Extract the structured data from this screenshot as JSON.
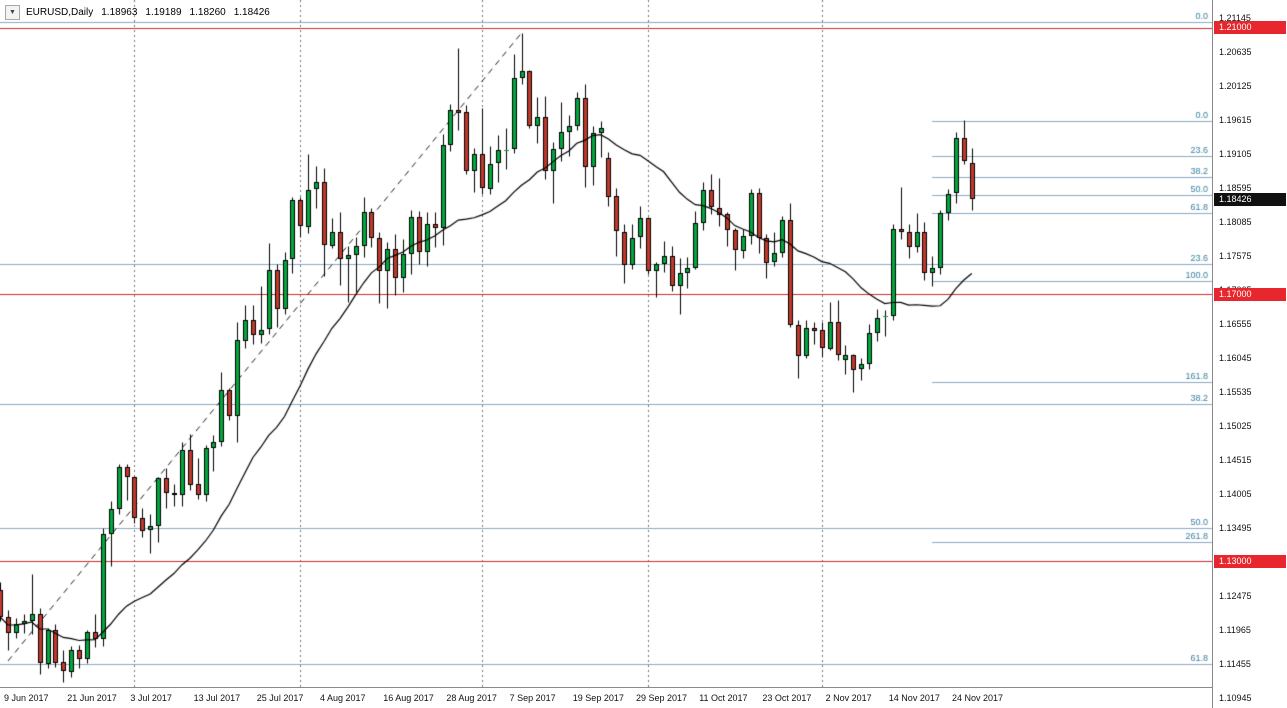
{
  "header": {
    "dropdown_icon": "▼",
    "symbol": "EURUSD,Daily",
    "open": "1.18963",
    "high": "1.19189",
    "low": "1.18260",
    "close": "1.18426"
  },
  "style": {
    "bg": "#ffffff",
    "up_candle": "#00a83e",
    "down_candle": "#c0392b",
    "candle_outline": "#000000",
    "wick": "#000000",
    "ma_line": "#000000",
    "trendline": "#222222",
    "separator": "#777777",
    "fib_line": "#86abc3",
    "fib_label": "#3b7f9f",
    "hline": "#d42a2a",
    "tag_red_bg": "#e8262d",
    "tag_black_bg": "#111111",
    "tag_text": "#ffffff",
    "axis_text": "#111111"
  },
  "chart_data": {
    "type": "candlestick",
    "symbol": "EURUSD",
    "timeframe": "Daily",
    "title": "EURUSD,Daily",
    "last_bar": {
      "open": 1.18963,
      "high": 1.19189,
      "low": 1.1826,
      "close": 1.18426
    },
    "price_axis": {
      "top_price": 1.21415,
      "bottom_price": 1.1111,
      "labels": [
        "1.21145",
        "1.20635",
        "1.20125",
        "1.19615",
        "1.19105",
        "1.18595",
        "1.18085",
        "1.17575",
        "1.17065",
        "1.16555",
        "1.16045",
        "1.15535",
        "1.15025",
        "1.14515",
        "1.14005",
        "1.13495",
        "1.12985",
        "1.12475",
        "1.11965",
        "1.11455",
        "1.10945"
      ]
    },
    "time_axis": {
      "labels": [
        "9 Jun 2017",
        "21 Jun 2017",
        "3 Jul 2017",
        "13 Jul 2017",
        "25 Jul 2017",
        "4 Aug 2017",
        "16 Aug 2017",
        "28 Aug 2017",
        "7 Sep 2017",
        "19 Sep 2017",
        "29 Sep 2017",
        "11 Oct 2017",
        "23 Oct 2017",
        "2 Nov 2017",
        "14 Nov 2017",
        "24 Nov 2017"
      ],
      "label_indices": [
        1,
        9,
        17,
        25,
        33,
        41,
        49,
        57,
        65,
        73,
        81,
        89,
        97,
        105,
        113,
        121
      ]
    },
    "separators": [
      17,
      38,
      61,
      82,
      104
    ],
    "ma": {
      "type": "sma",
      "period": 20
    },
    "trendline": {
      "from_index": 1,
      "from_price": 1.115,
      "to_index": 66,
      "to_price": 1.2092
    },
    "hlines": [
      {
        "price": 1.21,
        "label": "1.21000"
      },
      {
        "price": 1.17,
        "label": "1.17000"
      },
      {
        "price": 1.13,
        "label": "1.13000"
      }
    ],
    "current_price_tag": {
      "price": 1.18426,
      "label": "1.18426"
    },
    "fib_sets": [
      {
        "name": "fib-retracement-major",
        "start_index": null,
        "levels": [
          {
            "level": "0.0",
            "price": 1.2108
          },
          {
            "level": "23.6",
            "price": 1.1745
          },
          {
            "level": "38.2",
            "price": 1.1535
          },
          {
            "level": "50.0",
            "price": 1.135
          },
          {
            "level": "61.8",
            "price": 1.1145
          }
        ]
      },
      {
        "name": "fib-retracement-minor",
        "start_index": 118,
        "levels": [
          {
            "level": "0.0",
            "price": 1.196
          },
          {
            "level": "23.6",
            "price": 1.1908
          },
          {
            "level": "38.2",
            "price": 1.1876
          },
          {
            "level": "50.0",
            "price": 1.1849
          },
          {
            "level": "61.8",
            "price": 1.1822
          },
          {
            "level": "100.0",
            "price": 1.172
          },
          {
            "level": "161.8",
            "price": 1.1568
          },
          {
            "level": "261.8",
            "price": 1.1329
          }
        ]
      }
    ],
    "candles": [
      [
        1.1256,
        1.1269,
        1.121,
        1.1216
      ],
      [
        1.1216,
        1.1227,
        1.1166,
        1.1192
      ],
      [
        1.1192,
        1.1214,
        1.1184,
        1.1205
      ],
      [
        1.1205,
        1.1221,
        1.1192,
        1.121
      ],
      [
        1.121,
        1.128,
        1.119,
        1.122
      ],
      [
        1.122,
        1.1229,
        1.1131,
        1.1146
      ],
      [
        1.1146,
        1.12,
        1.114,
        1.1197
      ],
      [
        1.1197,
        1.1205,
        1.1141,
        1.1148
      ],
      [
        1.1148,
        1.1167,
        1.1119,
        1.1134
      ],
      [
        1.1134,
        1.1172,
        1.1126,
        1.1167
      ],
      [
        1.1167,
        1.1174,
        1.1139,
        1.1153
      ],
      [
        1.1153,
        1.1197,
        1.1147,
        1.1193
      ],
      [
        1.1193,
        1.122,
        1.1171,
        1.1183
      ],
      [
        1.1183,
        1.1349,
        1.1172,
        1.134
      ],
      [
        1.134,
        1.139,
        1.1292,
        1.1378
      ],
      [
        1.1378,
        1.1445,
        1.137,
        1.1441
      ],
      [
        1.1441,
        1.1445,
        1.1392,
        1.1426
      ],
      [
        1.1426,
        1.1428,
        1.1357,
        1.1365
      ],
      [
        1.1365,
        1.1379,
        1.1336,
        1.1346
      ],
      [
        1.1346,
        1.137,
        1.1312,
        1.1352
      ],
      [
        1.1352,
        1.1426,
        1.1329,
        1.1424
      ],
      [
        1.1424,
        1.144,
        1.1379,
        1.1402
      ],
      [
        1.1402,
        1.1416,
        1.1383,
        1.1399
      ],
      [
        1.1399,
        1.1479,
        1.1382,
        1.1467
      ],
      [
        1.1467,
        1.149,
        1.1407,
        1.1415
      ],
      [
        1.1415,
        1.1455,
        1.1393,
        1.1398
      ],
      [
        1.1398,
        1.1474,
        1.139,
        1.1469
      ],
      [
        1.1469,
        1.1489,
        1.1435,
        1.1478
      ],
      [
        1.1478,
        1.1583,
        1.1472,
        1.1556
      ],
      [
        1.1556,
        1.1559,
        1.1512,
        1.1517
      ],
      [
        1.1517,
        1.1658,
        1.1479,
        1.1631
      ],
      [
        1.1631,
        1.1684,
        1.162,
        1.1662
      ],
      [
        1.1662,
        1.1684,
        1.1625,
        1.164
      ],
      [
        1.164,
        1.1712,
        1.1627,
        1.1647
      ],
      [
        1.1647,
        1.1777,
        1.164,
        1.1736
      ],
      [
        1.1736,
        1.1745,
        1.1651,
        1.1678
      ],
      [
        1.1678,
        1.1764,
        1.167,
        1.1752
      ],
      [
        1.1752,
        1.1846,
        1.1732,
        1.1841
      ],
      [
        1.1841,
        1.1846,
        1.1786,
        1.1802
      ],
      [
        1.1802,
        1.191,
        1.1792,
        1.1857
      ],
      [
        1.1857,
        1.1893,
        1.183,
        1.1868
      ],
      [
        1.1868,
        1.1889,
        1.1728,
        1.1773
      ],
      [
        1.1773,
        1.1815,
        1.1769,
        1.1794
      ],
      [
        1.1794,
        1.1824,
        1.1714,
        1.1753
      ],
      [
        1.1753,
        1.1772,
        1.1689,
        1.1759
      ],
      [
        1.1759,
        1.1786,
        1.1703,
        1.1772
      ],
      [
        1.1772,
        1.1846,
        1.1756,
        1.1823
      ],
      [
        1.1823,
        1.1829,
        1.1771,
        1.1784
      ],
      [
        1.1784,
        1.1793,
        1.1687,
        1.1735
      ],
      [
        1.1735,
        1.1779,
        1.168,
        1.1768
      ],
      [
        1.1768,
        1.179,
        1.1699,
        1.1725
      ],
      [
        1.1725,
        1.1783,
        1.1704,
        1.1761
      ],
      [
        1.1761,
        1.1827,
        1.1731,
        1.1816
      ],
      [
        1.1816,
        1.1825,
        1.1745,
        1.1763
      ],
      [
        1.1763,
        1.1823,
        1.1742,
        1.1805
      ],
      [
        1.1805,
        1.1823,
        1.1771,
        1.1799
      ],
      [
        1.1799,
        1.1941,
        1.1774,
        1.1924
      ],
      [
        1.1924,
        1.1985,
        1.1915,
        1.1977
      ],
      [
        1.1977,
        1.207,
        1.1947,
        1.1973
      ],
      [
        1.1973,
        1.1984,
        1.1881,
        1.1884
      ],
      [
        1.1884,
        1.192,
        1.1854,
        1.191
      ],
      [
        1.191,
        1.198,
        1.1851,
        1.1859
      ],
      [
        1.1859,
        1.1922,
        1.1851,
        1.1896
      ],
      [
        1.1896,
        1.1939,
        1.1868,
        1.1916
      ],
      [
        1.1916,
        1.195,
        1.1888,
        1.1917
      ],
      [
        1.1917,
        1.206,
        1.1912,
        1.2024
      ],
      [
        1.2024,
        1.2092,
        1.2016,
        1.2035
      ],
      [
        1.2035,
        1.2036,
        1.1949,
        1.1953
      ],
      [
        1.1953,
        1.1996,
        1.1927,
        1.1966
      ],
      [
        1.1966,
        1.1997,
        1.1873,
        1.1885
      ],
      [
        1.1885,
        1.1928,
        1.1837,
        1.1918
      ],
      [
        1.1918,
        1.1988,
        1.19,
        1.1944
      ],
      [
        1.1944,
        1.1969,
        1.1908,
        1.1953
      ],
      [
        1.1953,
        1.2004,
        1.1946,
        1.1995
      ],
      [
        1.1995,
        1.2015,
        1.1861,
        1.1891
      ],
      [
        1.1891,
        1.1953,
        1.1864,
        1.1942
      ],
      [
        1.1942,
        1.196,
        1.1906,
        1.195
      ],
      [
        1.1905,
        1.1913,
        1.1832,
        1.1847
      ],
      [
        1.1847,
        1.186,
        1.1758,
        1.1794
      ],
      [
        1.1794,
        1.1806,
        1.1717,
        1.1745
      ],
      [
        1.1745,
        1.1805,
        1.1738,
        1.1785
      ],
      [
        1.1785,
        1.1833,
        1.177,
        1.1814
      ],
      [
        1.1814,
        1.1816,
        1.173,
        1.1734
      ],
      [
        1.1734,
        1.1749,
        1.1696,
        1.1745
      ],
      [
        1.1745,
        1.178,
        1.1733,
        1.1757
      ],
      [
        1.1757,
        1.1772,
        1.1705,
        1.1712
      ],
      [
        1.1712,
        1.1755,
        1.167,
        1.1732
      ],
      [
        1.1732,
        1.1756,
        1.1709,
        1.174
      ],
      [
        1.174,
        1.1825,
        1.1738,
        1.1807
      ],
      [
        1.1807,
        1.1869,
        1.1797,
        1.1856
      ],
      [
        1.1856,
        1.188,
        1.182,
        1.183
      ],
      [
        1.183,
        1.1875,
        1.1803,
        1.182
      ],
      [
        1.182,
        1.1823,
        1.1772,
        1.1796
      ],
      [
        1.1796,
        1.18,
        1.1736,
        1.1766
      ],
      [
        1.1766,
        1.1798,
        1.1755,
        1.1788
      ],
      [
        1.1788,
        1.1858,
        1.1775,
        1.1852
      ],
      [
        1.1852,
        1.186,
        1.1762,
        1.1785
      ],
      [
        1.1785,
        1.1791,
        1.1725,
        1.1748
      ],
      [
        1.1748,
        1.1793,
        1.1743,
        1.1762
      ],
      [
        1.1762,
        1.1817,
        1.1756,
        1.1812
      ],
      [
        1.1812,
        1.1837,
        1.1651,
        1.1654
      ],
      [
        1.1654,
        1.1662,
        1.1574,
        1.1608
      ],
      [
        1.1608,
        1.1661,
        1.1605,
        1.165
      ],
      [
        1.165,
        1.1658,
        1.1625,
        1.1646
      ],
      [
        1.1646,
        1.1658,
        1.1606,
        1.1619
      ],
      [
        1.1619,
        1.1689,
        1.1616,
        1.1659
      ],
      [
        1.1659,
        1.1691,
        1.1601,
        1.1609
      ],
      [
        1.1601,
        1.1624,
        1.158,
        1.1609
      ],
      [
        1.1609,
        1.161,
        1.1553,
        1.1587
      ],
      [
        1.1587,
        1.1605,
        1.1572,
        1.1595
      ],
      [
        1.1595,
        1.1655,
        1.1588,
        1.1642
      ],
      [
        1.1642,
        1.1678,
        1.163,
        1.1665
      ],
      [
        1.1665,
        1.1676,
        1.1638,
        1.1667
      ],
      [
        1.1667,
        1.1805,
        1.1661,
        1.1798
      ],
      [
        1.1798,
        1.1861,
        1.1783,
        1.1793
      ],
      [
        1.1793,
        1.1805,
        1.1755,
        1.1771
      ],
      [
        1.1771,
        1.1822,
        1.1764,
        1.1793
      ],
      [
        1.1793,
        1.1808,
        1.1722,
        1.1732
      ],
      [
        1.1732,
        1.1758,
        1.1713,
        1.1739
      ],
      [
        1.1739,
        1.1827,
        1.1731,
        1.1822
      ],
      [
        1.1822,
        1.1858,
        1.1811,
        1.1851
      ],
      [
        1.1851,
        1.1944,
        1.1837,
        1.1934
      ],
      [
        1.1934,
        1.1961,
        1.1896,
        1.1899
      ],
      [
        1.18963,
        1.19189,
        1.1826,
        1.18426
      ]
    ]
  }
}
